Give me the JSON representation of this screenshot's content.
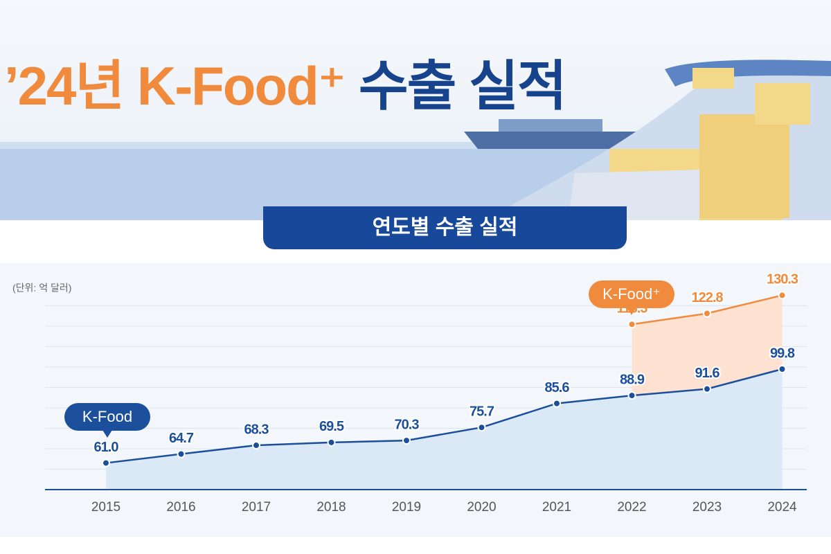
{
  "chart_data": {
    "type": "line",
    "title": [
      "’24년 K-Food⁺",
      "수출 실적"
    ],
    "subtitle": "연도별 수출 실적",
    "unit_label": "(단위: 억 달러)",
    "categories": [
      "2015",
      "2016",
      "2017",
      "2018",
      "2019",
      "2020",
      "2021",
      "2022",
      "2023",
      "2024"
    ],
    "series": [
      {
        "name": "K-Food",
        "color": "#1b4f9c",
        "area_color": "#dbe9f6",
        "values": [
          61.0,
          64.7,
          68.3,
          69.5,
          70.3,
          75.7,
          85.6,
          88.9,
          91.6,
          99.8
        ],
        "value_labels": [
          "61.0",
          "64.7",
          "68.3",
          "69.5",
          "70.3",
          "75.7",
          "85.6",
          "88.9",
          "91.6",
          "99.8"
        ]
      },
      {
        "name": "K-Food⁺",
        "color": "#f08a3c",
        "area_color": "#fde2d1",
        "values": [
          null,
          null,
          null,
          null,
          null,
          null,
          null,
          118.3,
          122.8,
          130.3
        ]
      }
    ],
    "ylim": [
      50,
      135
    ],
    "grid": true
  }
}
